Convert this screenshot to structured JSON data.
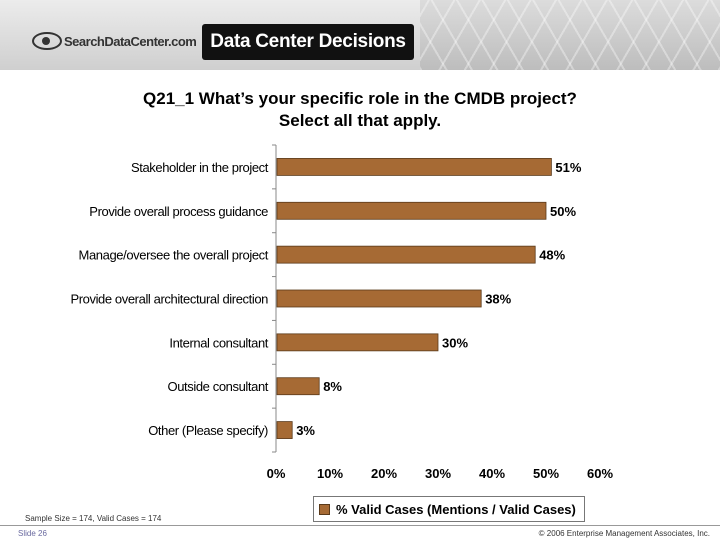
{
  "header": {
    "site_logo_text": "SearchDataCenter.com",
    "product_name": "Data Center Decisions"
  },
  "title": {
    "line1": "Q21_1 What’s your specific role in the CMDB project?",
    "line2": "Select all that apply."
  },
  "chart_data": {
    "type": "bar",
    "orientation": "horizontal",
    "categories": [
      "Stakeholder in the project",
      "Provide overall process guidance",
      "Manage/oversee the overall project",
      "Provide overall architectural direction",
      "Internal consultant",
      "Outside consultant",
      "Other (Please specify)"
    ],
    "series": [
      {
        "name": "% Valid Cases (Mentions / Valid Cases)",
        "values": [
          51,
          50,
          48,
          38,
          30,
          8,
          3
        ],
        "labels": [
          "51%",
          "50%",
          "48%",
          "38%",
          "30%",
          "8%",
          "3%"
        ]
      }
    ],
    "xlim": [
      0,
      60
    ],
    "xticks": [
      "0%",
      "10%",
      "20%",
      "30%",
      "40%",
      "50%",
      "60%"
    ],
    "bar_color": "#a66a34",
    "grid": false,
    "legend_position": "bottom-center"
  },
  "footer": {
    "sample": "Sample Size = 174, Valid Cases = 174",
    "slide": "Slide 26",
    "copyright": "© 2006 Enterprise Management Associates, Inc."
  }
}
